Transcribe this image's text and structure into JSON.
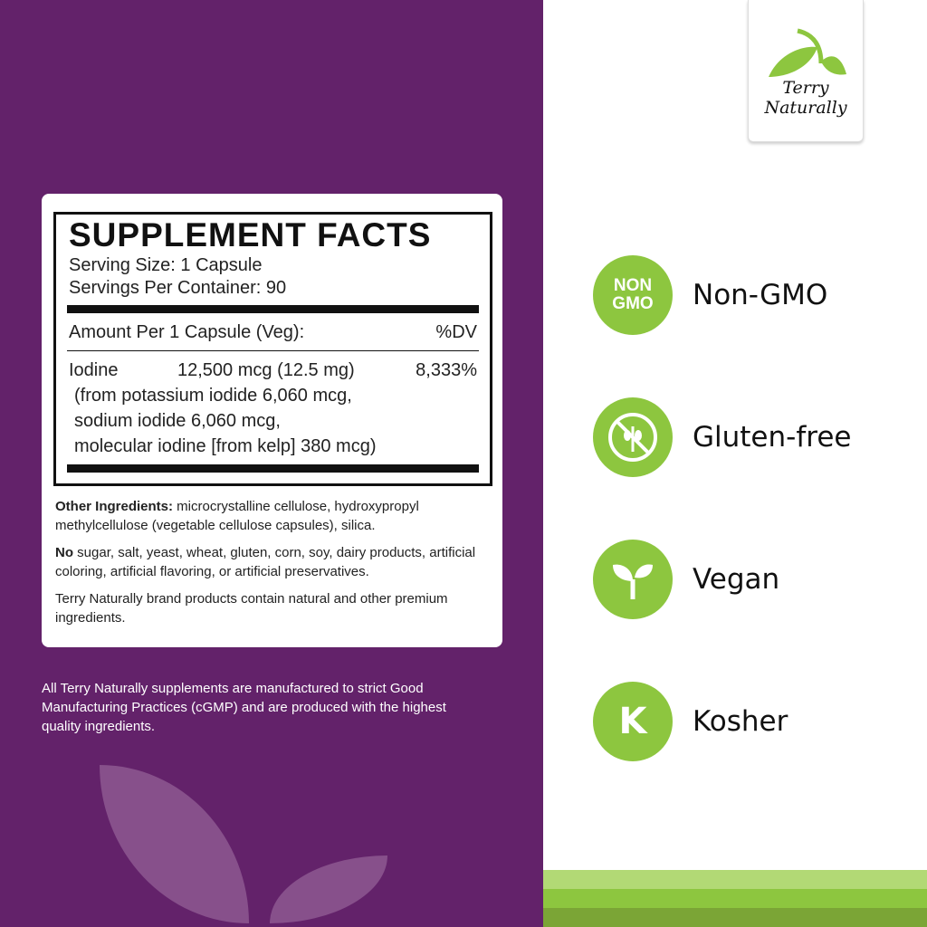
{
  "brand": {
    "name": "Terry Naturally",
    "line1": "Terry",
    "line2": "Naturally"
  },
  "facts": {
    "title": "SUPPLEMENT FACTS",
    "serving_size": "Serving Size: 1 Capsule",
    "servings": "Servings Per Container: 90",
    "amount_header": "Amount Per 1 Capsule (Veg):",
    "dv_header": "%DV",
    "nutrient": {
      "name": "Iodine",
      "amount": "12,500 mcg (12.5 mg)",
      "dv": "8,333%"
    },
    "sources": [
      "(from potassium iodide 6,060 mcg,",
      "sodium iodide 6,060 mcg,",
      "molecular iodine [from kelp] 380 mcg)"
    ]
  },
  "notes": {
    "other_label": "Other Ingredients:",
    "other_text": " microcrystalline cellulose, hydroxypropyl methylcellulose (vegetable cellulose capsules), silica.",
    "no_label": "No",
    "no_text": " sugar, salt, yeast, wheat, gluten, corn, soy, dairy products, artificial coloring, artificial flavoring, or artificial preservatives.",
    "brand_text": "Terry Naturally brand products contain natural and other premium ingredients."
  },
  "footer": "All Terry Naturally supplements are manufactured to strict Good Manufacturing Practices (cGMP) and are produced with the highest quality ingredients.",
  "badges": [
    {
      "icon": "non-gmo-icon",
      "icon_text": "NON GMO",
      "label": "Non-GMO"
    },
    {
      "icon": "gluten-free-icon",
      "label": "Gluten-free"
    },
    {
      "icon": "vegan-sprout-icon",
      "label": "Vegan"
    },
    {
      "icon": "kosher-icon",
      "icon_text": "K",
      "label": "Kosher"
    }
  ],
  "colors": {
    "purple": "#63226a",
    "green": "#8dc63f",
    "light_green": "#b2d975",
    "dark_green": "#7ba536"
  }
}
